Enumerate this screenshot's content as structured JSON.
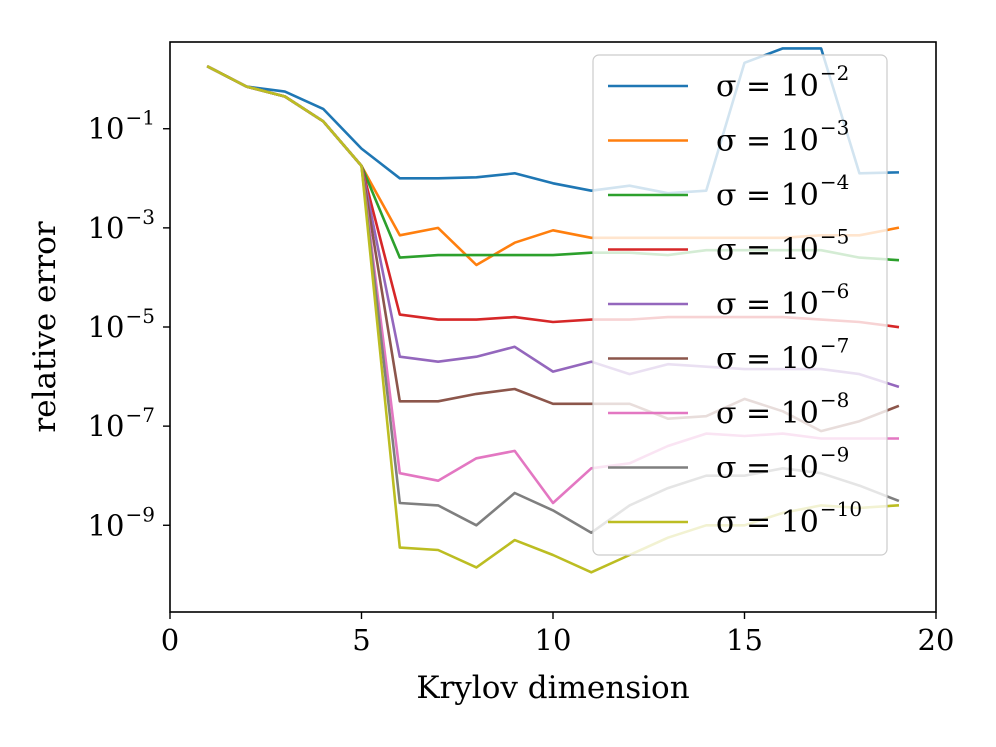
{
  "chart_data": {
    "type": "line",
    "title": "",
    "xlabel": "Krylov dimension",
    "ylabel": "relative error",
    "xlim": [
      0,
      20
    ],
    "ylim_log10": [
      -10.75,
      0.75
    ],
    "yscale": "log",
    "grid": false,
    "legend_placement": "top-right",
    "x_ticks": [
      0,
      5,
      10,
      15,
      20
    ],
    "y_ticks": [
      {
        "base": "10",
        "exponent": "−1",
        "log10": -1
      },
      {
        "base": "10",
        "exponent": "−3",
        "log10": -3
      },
      {
        "base": "10",
        "exponent": "−5",
        "log10": -5
      },
      {
        "base": "10",
        "exponent": "−7",
        "log10": -7
      },
      {
        "base": "10",
        "exponent": "−9",
        "log10": -9
      }
    ],
    "x": [
      1,
      2,
      3,
      4,
      5,
      6,
      7,
      8,
      9,
      10,
      11,
      12,
      13,
      14,
      15,
      16,
      17,
      18,
      19
    ],
    "series": [
      {
        "label_prefix": "σ = 10",
        "exponent": "−2",
        "color": "#1f77b4",
        "log10_values": [
          0.25,
          -0.15,
          -0.25,
          -0.6,
          -1.4,
          -2.0,
          -2.0,
          -1.98,
          -1.9,
          -2.1,
          -2.25,
          -2.15,
          -2.3,
          -2.25,
          0.33,
          0.62,
          0.62,
          -1.9,
          -1.88
        ]
      },
      {
        "label_prefix": "σ = 10",
        "exponent": "−3",
        "color": "#ff7f0e",
        "log10_values": [
          0.25,
          -0.15,
          -0.35,
          -0.85,
          -1.75,
          -3.15,
          -3.0,
          -3.75,
          -3.3,
          -3.05,
          -3.2,
          -3.2,
          -3.2,
          -3.2,
          -3.2,
          -3.2,
          -3.15,
          -3.15,
          -3.0
        ]
      },
      {
        "label_prefix": "σ = 10",
        "exponent": "−4",
        "color": "#2ca02c",
        "log10_values": [
          0.25,
          -0.15,
          -0.35,
          -0.85,
          -1.75,
          -3.6,
          -3.55,
          -3.55,
          -3.55,
          -3.55,
          -3.5,
          -3.5,
          -3.55,
          -3.45,
          -3.45,
          -3.45,
          -3.45,
          -3.6,
          -3.65
        ]
      },
      {
        "label_prefix": "σ = 10",
        "exponent": "−5",
        "color": "#d62728",
        "log10_values": [
          0.25,
          -0.15,
          -0.35,
          -0.85,
          -1.75,
          -4.75,
          -4.85,
          -4.85,
          -4.8,
          -4.9,
          -4.85,
          -4.85,
          -4.8,
          -4.8,
          -4.8,
          -4.8,
          -4.85,
          -4.9,
          -5.0
        ]
      },
      {
        "label_prefix": "σ = 10",
        "exponent": "−6",
        "color": "#9467bd",
        "log10_values": [
          0.25,
          -0.15,
          -0.35,
          -0.85,
          -1.75,
          -5.6,
          -5.7,
          -5.6,
          -5.4,
          -5.9,
          -5.7,
          -5.95,
          -5.75,
          -5.8,
          -5.85,
          -5.85,
          -5.85,
          -5.95,
          -6.2
        ]
      },
      {
        "label_prefix": "σ = 10",
        "exponent": "−7",
        "color": "#8c564b",
        "log10_values": [
          0.25,
          -0.15,
          -0.35,
          -0.85,
          -1.75,
          -6.5,
          -6.5,
          -6.35,
          -6.25,
          -6.55,
          -6.55,
          -6.55,
          -6.85,
          -6.8,
          -6.45,
          -6.7,
          -7.1,
          -6.9,
          -6.6
        ]
      },
      {
        "label_prefix": "σ = 10",
        "exponent": "−8",
        "color": "#e377c2",
        "log10_values": [
          0.25,
          -0.15,
          -0.35,
          -0.85,
          -1.75,
          -7.95,
          -8.1,
          -7.65,
          -7.5,
          -8.55,
          -7.85,
          -7.75,
          -7.4,
          -7.15,
          -7.2,
          -7.15,
          -7.25,
          -7.25,
          -7.25
        ]
      },
      {
        "label_prefix": "σ = 10",
        "exponent": "−9",
        "color": "#7f7f7f",
        "log10_values": [
          0.25,
          -0.15,
          -0.35,
          -0.85,
          -1.75,
          -8.55,
          -8.6,
          -9.0,
          -8.35,
          -8.7,
          -9.15,
          -8.6,
          -8.25,
          -8.0,
          -8.0,
          -7.85,
          -7.95,
          -8.2,
          -8.5
        ]
      },
      {
        "label_prefix": "σ = 10",
        "exponent": "−10",
        "color": "#bcbd22",
        "log10_values": [
          0.25,
          -0.15,
          -0.35,
          -0.85,
          -1.75,
          -9.45,
          -9.5,
          -9.85,
          -9.3,
          -9.6,
          -9.95,
          -9.6,
          -9.25,
          -9.0,
          -9.0,
          -8.75,
          -8.6,
          -8.65,
          -8.6
        ]
      }
    ]
  }
}
